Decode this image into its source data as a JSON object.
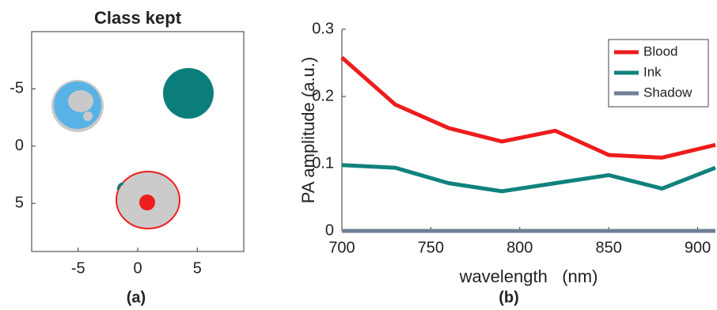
{
  "chart_data": [
    {
      "type": "image",
      "title": "Class kept",
      "panel_label": "(a)",
      "xlim": [
        -8.9,
        8.9
      ],
      "xticks": [
        -5,
        0,
        5
      ],
      "ylim": [
        -10,
        9.2
      ],
      "yticks": [
        -5,
        0,
        5
      ],
      "y_reversed": true
    },
    {
      "type": "line",
      "panel_label": "(b)",
      "xlabel": "wavelength   (nm)",
      "ylabel": "PA amplitude (a.u.)",
      "x": [
        700,
        730,
        760,
        790,
        820,
        850,
        880,
        910
      ],
      "series": [
        {
          "name": "Blood",
          "color": "#ee1c1c",
          "values": [
            0.258,
            0.188,
            0.153,
            0.133,
            0.149,
            0.113,
            0.109,
            0.128
          ]
        },
        {
          "name": "Ink",
          "color": "#10827c",
          "values": [
            0.098,
            0.094,
            0.071,
            0.059,
            0.071,
            0.083,
            0.063,
            0.094
          ]
        },
        {
          "name": "Shadow",
          "color": "#6f7f94",
          "values": [
            0,
            0,
            0,
            0,
            0,
            0,
            0,
            0
          ]
        }
      ],
      "xlim": [
        700,
        910
      ],
      "xticks": [
        700,
        750,
        800,
        850,
        900
      ],
      "ylim": [
        0,
        0.3
      ],
      "yticks": [
        0,
        0.1,
        0.2,
        0.3
      ],
      "legend": "northeast"
    }
  ]
}
